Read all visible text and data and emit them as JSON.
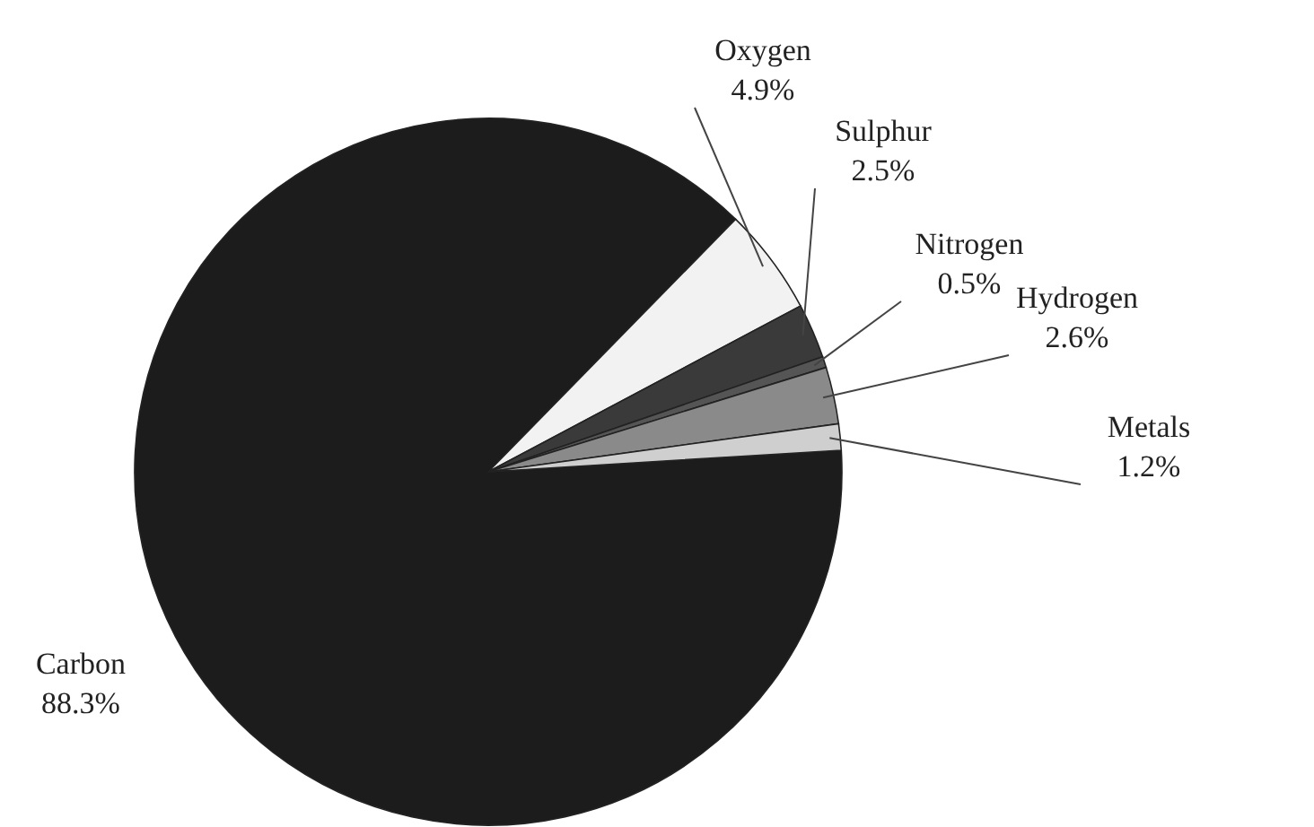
{
  "chart_data": {
    "type": "pie",
    "categories": [
      "Carbon",
      "Oxygen",
      "Sulphur",
      "Nitrogen",
      "Hydrogen",
      "Metals"
    ],
    "values": [
      88.3,
      4.9,
      2.5,
      0.5,
      2.6,
      1.2
    ],
    "colors": [
      "#1c1c1c",
      "#f2f2f2",
      "#3a3a3a",
      "#555555",
      "#8a8a8a",
      "#cfcfcf"
    ],
    "value_labels": [
      "88.3%",
      "4.9%",
      "2.5%",
      "0.5%",
      "2.6%",
      "1.2%"
    ]
  }
}
